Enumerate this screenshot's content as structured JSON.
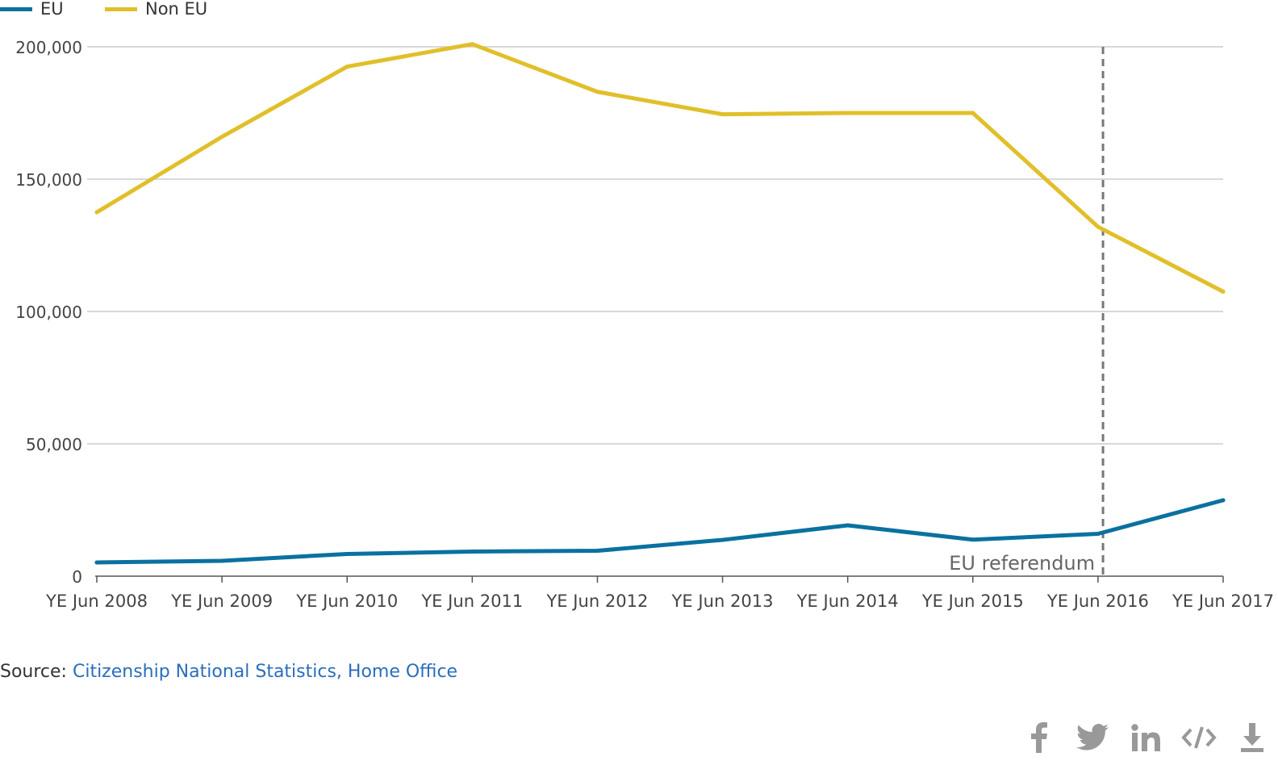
{
  "legend": [
    {
      "label": "EU",
      "color": "#0a71a0"
    },
    {
      "label": "Non EU",
      "color": "#e1bf2a"
    }
  ],
  "chart_data": {
    "type": "line",
    "categories": [
      "YE Jun 2008",
      "YE Jun 2009",
      "YE Jun 2010",
      "YE Jun 2011",
      "YE Jun 2012",
      "YE Jun 2013",
      "YE Jun 2014",
      "YE Jun 2015",
      "YE Jun 2016",
      "YE Jun 2017"
    ],
    "series": [
      {
        "name": "EU",
        "color": "#0a71a0",
        "values": [
          5200,
          5800,
          8400,
          9300,
          9600,
          13700,
          19200,
          13800,
          16000,
          28700
        ]
      },
      {
        "name": "Non EU",
        "color": "#e1bf2a",
        "values": [
          137500,
          166000,
          192500,
          201000,
          183000,
          174500,
          175000,
          175000,
          132000,
          107500
        ]
      }
    ],
    "y_ticks": [
      0,
      50000,
      100000,
      150000,
      200000
    ],
    "y_tick_labels": [
      "0",
      "50,000",
      "100,000",
      "150,000",
      "200,000"
    ],
    "ylim": [
      0,
      200000
    ],
    "grid": true,
    "legend_position": "top-left",
    "annotation": {
      "label": "EU referendum",
      "x_position": 8.04,
      "style": "dashed"
    }
  },
  "source": {
    "prefix": "Source: ",
    "link_text": "Citizenship National Statistics, Home Office"
  },
  "share_icons": [
    "facebook-icon",
    "twitter-icon",
    "linkedin-icon",
    "embed-icon",
    "download-icon"
  ]
}
